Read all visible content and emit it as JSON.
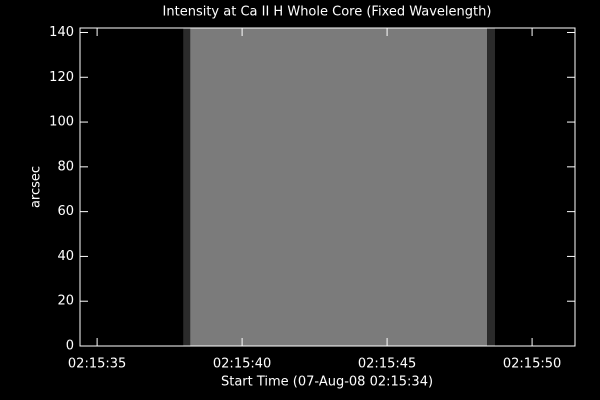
{
  "chart_data": {
    "type": "image",
    "title": "Intensity at Ca II H Whole Core (Fixed Wavelength)",
    "xlabel": "Start Time (07-Aug-08 02:15:34)",
    "ylabel": "arcsec",
    "xlim": [
      0.41,
      17.48
    ],
    "xticks": [
      {
        "value": 1,
        "label": "02:15:35"
      },
      {
        "value": 6,
        "label": "02:15:40"
      },
      {
        "value": 11,
        "label": "02:15:45"
      },
      {
        "value": 16,
        "label": "02:15:50"
      }
    ],
    "ylim": [
      0,
      142
    ],
    "yticks": [
      0,
      20,
      40,
      60,
      80,
      100,
      120,
      140
    ],
    "bands": [
      {
        "x0": 3.97,
        "x1": 4.21,
        "color": "#2b2b2b"
      },
      {
        "x0": 4.21,
        "x1": 14.45,
        "color": "#7b7b7b"
      },
      {
        "x0": 14.45,
        "x1": 14.72,
        "color": "#2b2b2b"
      }
    ],
    "background": "#000000",
    "axis_color": "#ffffff"
  }
}
